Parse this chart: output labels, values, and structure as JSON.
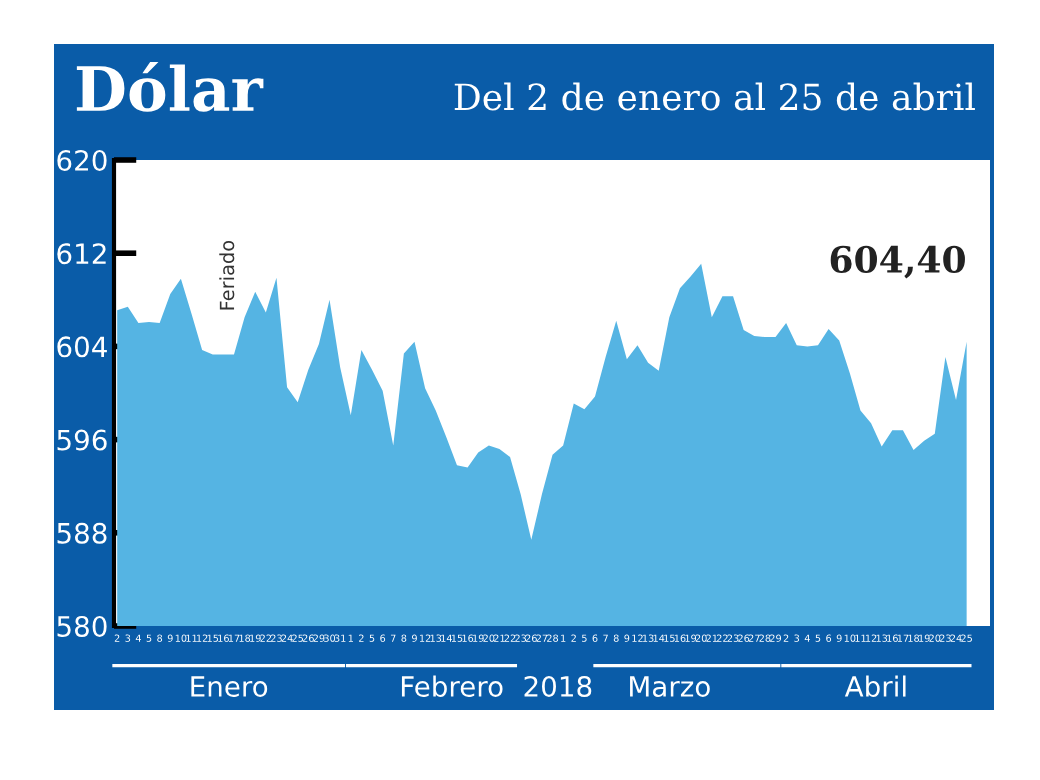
{
  "chart_data": {
    "type": "area",
    "title": "Dólar",
    "subtitle": "Del 2 de enero al 25 de abril",
    "categories": [
      "2",
      "3",
      "4",
      "5",
      "8",
      "9",
      "10",
      "11",
      "12",
      "15",
      "16",
      "17",
      "18",
      "19",
      "22",
      "23",
      "24",
      "25",
      "26",
      "29",
      "30",
      "31",
      "1",
      "2",
      "5",
      "6",
      "7",
      "8",
      "9",
      "12",
      "13",
      "14",
      "15",
      "16",
      "19",
      "20",
      "21",
      "22",
      "23",
      "26",
      "27",
      "28",
      "1",
      "2",
      "5",
      "6",
      "7",
      "8",
      "9",
      "12",
      "13",
      "14",
      "15",
      "16",
      "19",
      "20",
      "21",
      "22",
      "23",
      "26",
      "27",
      "28",
      "29",
      "2",
      "3",
      "4",
      "5",
      "6",
      "9",
      "10",
      "11",
      "12",
      "13",
      "16",
      "17",
      "18",
      "19",
      "20",
      "23",
      "24",
      "25"
    ],
    "series": [
      {
        "color": "#55b4e3",
        "values": [
          607.1,
          607.4,
          606.0,
          606.1,
          606.0,
          608.5,
          609.8,
          606.8,
          603.7,
          603.3,
          603.3,
          603.3,
          606.5,
          608.7,
          606.9,
          609.9,
          600.5,
          599.2,
          602.0,
          604.2,
          608.0,
          602.2,
          598.1,
          603.7,
          602.0,
          600.2,
          595.5,
          603.4,
          604.4,
          600.4,
          598.5,
          596.2,
          593.8,
          593.6,
          594.9,
          595.5,
          595.2,
          594.5,
          591.3,
          587.4,
          591.3,
          594.7,
          595.5,
          599.1,
          598.6,
          599.7,
          603.1,
          606.2,
          602.9,
          604.1,
          602.6,
          601.9,
          606.5,
          609.0,
          610.0,
          611.1,
          606.5,
          608.3,
          608.3,
          605.4,
          604.9,
          604.8,
          604.8,
          606.0,
          604.1,
          604.0,
          604.1,
          605.5,
          604.5,
          601.7,
          598.5,
          597.4,
          595.4,
          596.8,
          596.8,
          595.1,
          595.9,
          596.5,
          603.1,
          599.4,
          604.4
        ]
      }
    ],
    "ylim": [
      580,
      620
    ],
    "yticks": [
      580,
      588,
      596,
      604,
      612,
      620
    ],
    "grid": false,
    "annotations": [
      "Feriado",
      "604,40",
      "Enero",
      "Febrero",
      "2018",
      "Marzo",
      "Abril"
    ]
  }
}
